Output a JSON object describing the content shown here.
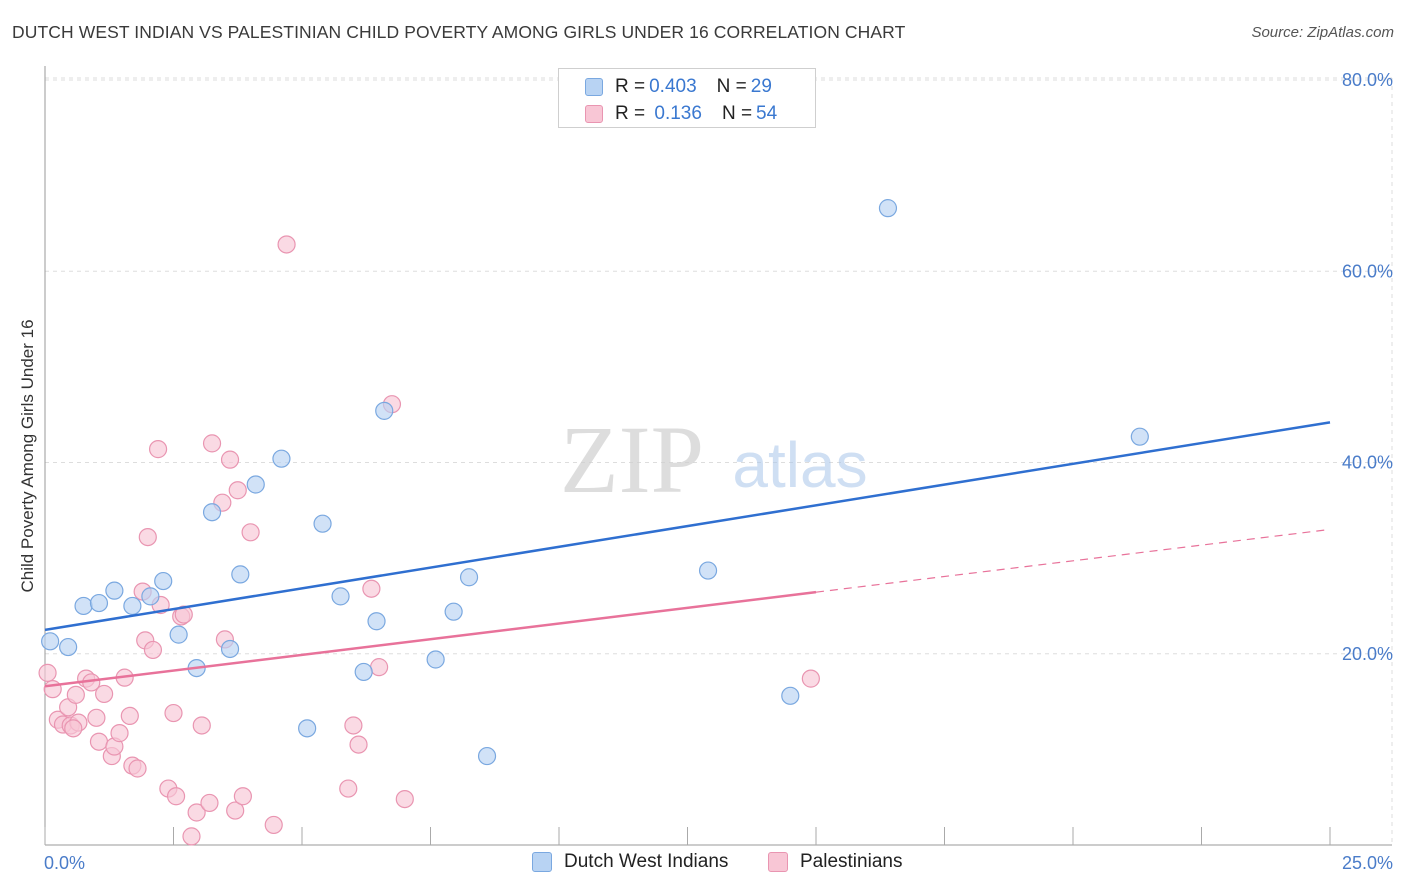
{
  "title": "DUTCH WEST INDIAN VS PALESTINIAN CHILD POVERTY AMONG GIRLS UNDER 16 CORRELATION CHART",
  "source": "Source: ZipAtlas.com",
  "watermark": {
    "zip": "ZIP",
    "atlas": "atlas"
  },
  "legend_top": {
    "rows": [
      {
        "r_label": "R = ",
        "r_value": "0.403",
        "n_label": "N = ",
        "n_value": "29"
      },
      {
        "r_label": "R = ",
        "r_value": " 0.136",
        "n_label": "N = ",
        "n_value": "54"
      }
    ]
  },
  "legend_bottom": {
    "series1": "Dutch West Indians",
    "series2": "Palestinians"
  },
  "colors": {
    "blue_fill": "#b8d3f3",
    "blue_stroke": "#7aa8e0",
    "blue_line": "#2f6fd0",
    "pink_fill": "#f8c6d5",
    "pink_stroke": "#e995b1",
    "pink_line": "#e8729a",
    "tick_text": "#4a7cc9",
    "grid": "#dddddd"
  },
  "chart_data": {
    "type": "scatter",
    "title": "DUTCH WEST INDIAN VS PALESTINIAN CHILD POVERTY AMONG GIRLS UNDER 16 CORRELATION CHART",
    "xlabel": "",
    "ylabel": "Child Poverty Among Girls Under 16",
    "xlim": [
      0,
      25
    ],
    "ylim": [
      0,
      80
    ],
    "x_ticks": [
      "0.0%",
      "25.0%"
    ],
    "y_ticks": [
      {
        "value": 20,
        "label": "20.0%"
      },
      {
        "value": 40,
        "label": "40.0%"
      },
      {
        "value": 60,
        "label": "60.0%"
      },
      {
        "value": 80,
        "label": "80.0%"
      }
    ],
    "grid": true,
    "legend_position": "top-center",
    "series": [
      {
        "name": "Dutch West Indians",
        "color": "#b8d3f3",
        "r": 0.403,
        "n": 29,
        "trend": {
          "x": [
            0,
            25
          ],
          "y": [
            22.5,
            44.2
          ],
          "dashed_from": null
        },
        "points": [
          [
            0.1,
            21.3
          ],
          [
            0.45,
            20.7
          ],
          [
            0.75,
            25.0
          ],
          [
            1.05,
            25.3
          ],
          [
            1.35,
            26.6
          ],
          [
            1.7,
            25.0
          ],
          [
            2.05,
            26.0
          ],
          [
            2.3,
            27.6
          ],
          [
            2.6,
            22.0
          ],
          [
            2.95,
            18.5
          ],
          [
            3.25,
            34.8
          ],
          [
            3.6,
            20.5
          ],
          [
            3.8,
            28.3
          ],
          [
            4.1,
            37.7
          ],
          [
            4.6,
            40.4
          ],
          [
            5.1,
            12.2
          ],
          [
            5.4,
            33.6
          ],
          [
            5.75,
            26.0
          ],
          [
            6.2,
            18.1
          ],
          [
            6.45,
            23.4
          ],
          [
            6.6,
            45.4
          ],
          [
            7.6,
            19.4
          ],
          [
            7.95,
            24.4
          ],
          [
            8.25,
            28.0
          ],
          [
            8.6,
            9.3
          ],
          [
            12.9,
            28.7
          ],
          [
            14.5,
            15.6
          ],
          [
            16.4,
            66.6
          ],
          [
            21.3,
            42.7
          ]
        ]
      },
      {
        "name": "Palestinians",
        "color": "#f8c6d5",
        "r": 0.136,
        "n": 54,
        "trend": {
          "x": [
            0,
            25
          ],
          "y": [
            16.6,
            33.0
          ],
          "dashed_from": 15.0
        },
        "points": [
          [
            0.05,
            18.0
          ],
          [
            0.15,
            16.3
          ],
          [
            0.25,
            13.1
          ],
          [
            0.35,
            12.6
          ],
          [
            0.45,
            14.4
          ],
          [
            0.5,
            12.5
          ],
          [
            0.6,
            15.7
          ],
          [
            0.65,
            12.8
          ],
          [
            0.8,
            17.4
          ],
          [
            0.9,
            17.0
          ],
          [
            1.0,
            13.3
          ],
          [
            1.05,
            10.8
          ],
          [
            1.15,
            15.8
          ],
          [
            1.3,
            9.3
          ],
          [
            1.35,
            10.3
          ],
          [
            1.45,
            11.7
          ],
          [
            1.55,
            17.5
          ],
          [
            1.65,
            13.5
          ],
          [
            1.7,
            8.3
          ],
          [
            1.8,
            8.0
          ],
          [
            1.9,
            26.5
          ],
          [
            1.95,
            21.4
          ],
          [
            2.0,
            32.2
          ],
          [
            2.1,
            20.4
          ],
          [
            2.2,
            41.4
          ],
          [
            2.25,
            25.1
          ],
          [
            2.4,
            5.9
          ],
          [
            2.5,
            13.8
          ],
          [
            2.55,
            5.1
          ],
          [
            2.65,
            23.9
          ],
          [
            2.85,
            0.9
          ],
          [
            2.95,
            3.4
          ],
          [
            3.05,
            12.5
          ],
          [
            3.2,
            4.4
          ],
          [
            3.25,
            42.0
          ],
          [
            3.45,
            35.8
          ],
          [
            3.5,
            21.5
          ],
          [
            3.6,
            40.3
          ],
          [
            3.7,
            3.6
          ],
          [
            3.75,
            37.1
          ],
          [
            3.85,
            5.1
          ],
          [
            4.0,
            32.7
          ],
          [
            4.45,
            2.1
          ],
          [
            4.7,
            62.8
          ],
          [
            5.9,
            5.9
          ],
          [
            6.0,
            12.5
          ],
          [
            6.1,
            10.5
          ],
          [
            6.35,
            26.8
          ],
          [
            6.5,
            18.6
          ],
          [
            6.75,
            46.1
          ],
          [
            7.0,
            4.8
          ],
          [
            14.9,
            17.4
          ],
          [
            2.7,
            24.1
          ],
          [
            0.55,
            12.2
          ]
        ]
      }
    ]
  }
}
